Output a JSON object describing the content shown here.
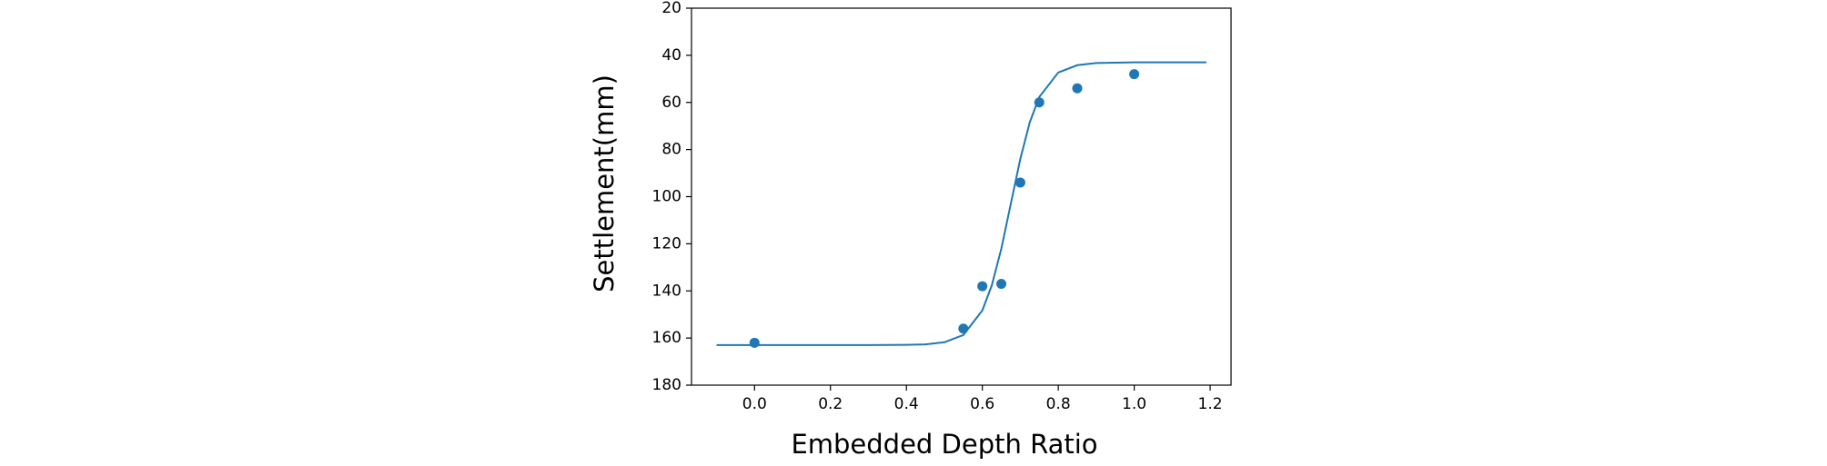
{
  "chart_data": {
    "type": "scatter",
    "x_label": "Embedded Depth Ratio",
    "y_label": "Settlement(mm)",
    "xlim": [
      -0.166,
      1.255
    ],
    "ylim": [
      180,
      20
    ],
    "xticks": [
      {
        "value": 0,
        "label": "0.0"
      },
      {
        "value": 0.2,
        "label": "0.2"
      },
      {
        "value": 0.4,
        "label": "0.4"
      },
      {
        "value": 0.6,
        "label": "0.6"
      },
      {
        "value": 0.8,
        "label": "0.8"
      },
      {
        "value": 1,
        "label": "1.0"
      },
      {
        "value": 1.2,
        "label": "1.2"
      }
    ],
    "yticks": [
      20,
      40,
      60,
      80,
      100,
      120,
      140,
      160,
      180
    ],
    "series": [
      {
        "type": "scatter",
        "color": "#1f77b4",
        "x": [
          0.0,
          0.55,
          0.6,
          0.65,
          0.7,
          0.75,
          0.85,
          1.0
        ],
        "values": [
          162,
          156,
          138,
          137,
          94,
          60,
          54,
          48
        ]
      },
      {
        "type": "line",
        "color": "#1f77b4",
        "x": [
          -0.1,
          0.0,
          0.1,
          0.2,
          0.3,
          0.4,
          0.45,
          0.5,
          0.55,
          0.6,
          0.625,
          0.65,
          0.675,
          0.7,
          0.725,
          0.75,
          0.8,
          0.85,
          0.9,
          1.0,
          1.1,
          1.19
        ],
        "values": [
          163,
          163,
          163,
          163,
          163,
          162.9,
          162.7,
          161.8,
          158.7,
          148.3,
          137.6,
          122.1,
          103,
          84,
          68.4,
          57.7,
          47.3,
          44.2,
          43.3,
          43,
          43,
          43
        ]
      }
    ]
  }
}
